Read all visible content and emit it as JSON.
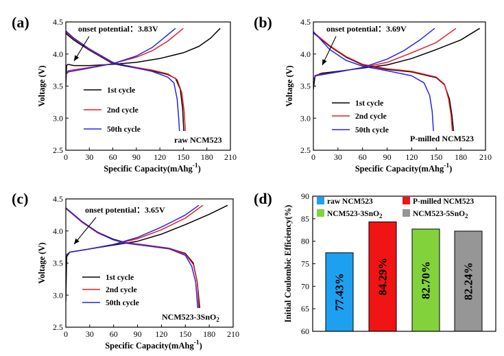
{
  "figure": {
    "voltage_axis_label": "Voltage (V)",
    "capacity_axis_label": "Specific Capacity(mAhg",
    "capacity_axis_exponent": "-1",
    "capacity_axis_close": ")",
    "ce_axis_label": "Initial Coulombic Efficiency(%)",
    "colors": {
      "black": "#000000",
      "red": "#e81c24",
      "blue": "#2323e6"
    }
  },
  "chart_data": [
    {
      "id": "a",
      "type": "line",
      "panel_label": "(a)",
      "xlabel": "Specific Capacity(mAhg-1)",
      "ylabel": "Voltage (V)",
      "xlim": [
        0,
        210
      ],
      "ylim": [
        2.5,
        4.5
      ],
      "xticks": [
        "0",
        "30",
        "60",
        "90",
        "120",
        "150",
        "180",
        "210"
      ],
      "yticks": [
        "2.5",
        "3.0",
        "3.5",
        "4.0",
        "4.5"
      ],
      "annotation": "onset potential：3.83V",
      "sample_label": "raw NCM523",
      "legend_position": "lower-left",
      "series": [
        {
          "name": "1st   cycle",
          "color": "#000000",
          "charge": [
            [
              0,
              3.5
            ],
            [
              1,
              3.82
            ],
            [
              3,
              3.84
            ],
            [
              10,
              3.82
            ],
            [
              30,
              3.82
            ],
            [
              60,
              3.84
            ],
            [
              90,
              3.87
            ],
            [
              120,
              3.93
            ],
            [
              150,
              4.02
            ],
            [
              170,
              4.12
            ],
            [
              185,
              4.25
            ],
            [
              197,
              4.4
            ]
          ],
          "discharge": [
            [
              0,
              4.32
            ],
            [
              10,
              4.22
            ],
            [
              30,
              4.06
            ],
            [
              60,
              3.85
            ],
            [
              90,
              3.78
            ],
            [
              110,
              3.74
            ],
            [
              130,
              3.68
            ],
            [
              140,
              3.62
            ],
            [
              146,
              3.45
            ],
            [
              149,
              3.15
            ],
            [
              150.5,
              2.8
            ]
          ]
        },
        {
          "name": "2nd   cycle",
          "color": "#e81c24",
          "charge": [
            [
              0,
              3.68
            ],
            [
              3,
              3.74
            ],
            [
              30,
              3.79
            ],
            [
              60,
              3.85
            ],
            [
              90,
              3.95
            ],
            [
              110,
              4.05
            ],
            [
              130,
              4.2
            ],
            [
              150,
              4.4
            ]
          ],
          "discharge": [
            [
              0,
              4.34
            ],
            [
              10,
              4.24
            ],
            [
              30,
              4.07
            ],
            [
              60,
              3.86
            ],
            [
              90,
              3.79
            ],
            [
              110,
              3.75
            ],
            [
              130,
              3.69
            ],
            [
              142,
              3.6
            ],
            [
              148,
              3.4
            ],
            [
              151,
              3.1
            ],
            [
              152.5,
              2.8
            ]
          ]
        },
        {
          "name": "50th cycle",
          "color": "#2323e6",
          "charge": [
            [
              0,
              3.68
            ],
            [
              3,
              3.72
            ],
            [
              30,
              3.78
            ],
            [
              60,
              3.85
            ],
            [
              90,
              3.97
            ],
            [
              110,
              4.1
            ],
            [
              125,
              4.25
            ],
            [
              140,
              4.4
            ]
          ],
          "discharge": [
            [
              0,
              4.36
            ],
            [
              10,
              4.25
            ],
            [
              30,
              4.08
            ],
            [
              60,
              3.87
            ],
            [
              90,
              3.78
            ],
            [
              110,
              3.73
            ],
            [
              130,
              3.64
            ],
            [
              138,
              3.55
            ],
            [
              142,
              3.3
            ],
            [
              144,
              3.0
            ],
            [
              145,
              2.8
            ]
          ]
        }
      ]
    },
    {
      "id": "b",
      "type": "line",
      "panel_label": "(b)",
      "xlabel": "Specific Capacity(mAhg-1)",
      "ylabel": "Voltage (V)",
      "xlim": [
        0,
        210
      ],
      "ylim": [
        2.5,
        4.5
      ],
      "xticks": [
        "0",
        "30",
        "60",
        "90",
        "120",
        "150",
        "180",
        "210"
      ],
      "yticks": [
        "2.5",
        "3.0",
        "3.5",
        "4.0",
        "4.5"
      ],
      "annotation": "onset potential：3.69V",
      "sample_label": "P-milled NCM523",
      "legend_position": "lower-left",
      "series": [
        {
          "name": "1st   cycle",
          "color": "#000000",
          "charge": [
            [
              0,
              3.45
            ],
            [
              2,
              3.66
            ],
            [
              10,
              3.7
            ],
            [
              30,
              3.73
            ],
            [
              60,
              3.78
            ],
            [
              90,
              3.83
            ],
            [
              120,
              3.93
            ],
            [
              150,
              4.07
            ],
            [
              180,
              4.22
            ],
            [
              203,
              4.4
            ]
          ],
          "discharge": [
            [
              0,
              4.33
            ],
            [
              20,
              4.12
            ],
            [
              40,
              3.95
            ],
            [
              60,
              3.83
            ],
            [
              90,
              3.76
            ],
            [
              120,
              3.72
            ],
            [
              150,
              3.63
            ],
            [
              160,
              3.52
            ],
            [
              166,
              3.3
            ],
            [
              169,
              3.05
            ],
            [
              171,
              2.8
            ]
          ]
        },
        {
          "name": "2nd   cycle",
          "color": "#e81c24",
          "charge": [
            [
              0,
              3.6
            ],
            [
              3,
              3.67
            ],
            [
              30,
              3.72
            ],
            [
              60,
              3.79
            ],
            [
              90,
              3.87
            ],
            [
              120,
              4.02
            ],
            [
              150,
              4.18
            ],
            [
              174,
              4.4
            ]
          ],
          "discharge": [
            [
              0,
              4.34
            ],
            [
              20,
              4.13
            ],
            [
              40,
              3.96
            ],
            [
              60,
              3.84
            ],
            [
              90,
              3.77
            ],
            [
              120,
              3.73
            ],
            [
              150,
              3.64
            ],
            [
              160,
              3.53
            ],
            [
              165,
              3.3
            ],
            [
              168,
              3.05
            ],
            [
              169.5,
              2.8
            ]
          ]
        },
        {
          "name": "50th cycle",
          "color": "#2323e6",
          "charge": [
            [
              0,
              3.6
            ],
            [
              3,
              3.66
            ],
            [
              30,
              3.72
            ],
            [
              60,
              3.79
            ],
            [
              90,
              3.92
            ],
            [
              110,
              4.05
            ],
            [
              130,
              4.22
            ],
            [
              148,
              4.4
            ]
          ],
          "discharge": [
            [
              0,
              4.35
            ],
            [
              20,
              4.07
            ],
            [
              40,
              3.9
            ],
            [
              60,
              3.81
            ],
            [
              90,
              3.74
            ],
            [
              120,
              3.66
            ],
            [
              135,
              3.55
            ],
            [
              142,
              3.35
            ],
            [
              145,
              3.1
            ],
            [
              146.5,
              2.8
            ]
          ]
        }
      ]
    },
    {
      "id": "c",
      "type": "line",
      "panel_label": "(c)",
      "xlabel": "Specific Capacity(mAhg-1)",
      "ylabel": "Voltage (V)",
      "xlim": [
        0,
        210
      ],
      "ylim": [
        2.5,
        4.5
      ],
      "xticks": [
        "0",
        "30",
        "60",
        "90",
        "120",
        "150",
        "180",
        "210"
      ],
      "yticks": [
        "2.5",
        "3.0",
        "3.5",
        "4.0",
        "4.5"
      ],
      "annotation": "onset potential：3.65V",
      "sample_label": "NCM523-3SnO",
      "sample_label_sub": "2",
      "legend_position": "lower-left",
      "series": [
        {
          "name": "1st   cycle",
          "color": "#000000",
          "charge": [
            [
              0,
              2.9
            ],
            [
              1,
              3.6
            ],
            [
              5,
              3.67
            ],
            [
              30,
              3.72
            ],
            [
              60,
              3.78
            ],
            [
              90,
              3.84
            ],
            [
              120,
              3.95
            ],
            [
              150,
              4.1
            ],
            [
              180,
              4.26
            ],
            [
              203,
              4.4
            ]
          ],
          "discharge": [
            [
              0,
              4.36
            ],
            [
              20,
              4.15
            ],
            [
              40,
              3.98
            ],
            [
              60,
              3.87
            ],
            [
              75,
              3.82
            ],
            [
              100,
              3.78
            ],
            [
              130,
              3.73
            ],
            [
              150,
              3.65
            ],
            [
              160,
              3.5
            ],
            [
              165,
              3.2
            ],
            [
              168,
              2.8
            ]
          ]
        },
        {
          "name": "2nd   cycle",
          "color": "#e81c24",
          "charge": [
            [
              0,
              3.62
            ],
            [
              5,
              3.67
            ],
            [
              30,
              3.72
            ],
            [
              60,
              3.79
            ],
            [
              90,
              3.88
            ],
            [
              120,
              4.02
            ],
            [
              150,
              4.2
            ],
            [
              172,
              4.4
            ]
          ],
          "discharge": [
            [
              0,
              4.35
            ],
            [
              20,
              4.14
            ],
            [
              40,
              3.97
            ],
            [
              60,
              3.86
            ],
            [
              75,
              3.82
            ],
            [
              100,
              3.78
            ],
            [
              130,
              3.73
            ],
            [
              150,
              3.64
            ],
            [
              160,
              3.48
            ],
            [
              165,
              3.2
            ],
            [
              167,
              2.8
            ]
          ]
        },
        {
          "name": "50th cycle",
          "color": "#2323e6",
          "charge": [
            [
              0,
              3.62
            ],
            [
              5,
              3.67
            ],
            [
              30,
              3.72
            ],
            [
              60,
              3.79
            ],
            [
              90,
              3.9
            ],
            [
              120,
              4.06
            ],
            [
              150,
              4.25
            ],
            [
              167,
              4.4
            ]
          ],
          "discharge": [
            [
              0,
              4.36
            ],
            [
              20,
              4.15
            ],
            [
              40,
              3.98
            ],
            [
              60,
              3.86
            ],
            [
              75,
              3.81
            ],
            [
              100,
              3.77
            ],
            [
              130,
              3.72
            ],
            [
              150,
              3.62
            ],
            [
              158,
              3.45
            ],
            [
              163,
              3.2
            ],
            [
              165.5,
              2.8
            ]
          ]
        }
      ]
    },
    {
      "id": "d",
      "type": "bar",
      "panel_label": "(d)",
      "ylabel": "Initial Coulombic Efficiency(%)",
      "ylim": [
        60,
        90
      ],
      "yticks": [
        "60",
        "65",
        "70",
        "75",
        "80",
        "85",
        "90"
      ],
      "legend_position": "top",
      "categories": [
        "raw NCM523",
        "P-milled NCM523",
        "NCM523-3SnO2",
        "NCM523-5SnO2"
      ],
      "values": [
        77.43,
        84.29,
        82.7,
        82.24
      ],
      "value_labels": [
        "77.43%",
        "84.29%",
        "82.70%",
        "82.24%"
      ],
      "colors": [
        "#1ea0f0",
        "#f01414",
        "#82d23c",
        "#969696"
      ],
      "legend": [
        {
          "text": "raw NCM523",
          "sub": ""
        },
        {
          "text": "P-milled NCM523",
          "sub": ""
        },
        {
          "text": "NCM523-3SnO",
          "sub": "2"
        },
        {
          "text": "NCM523-5SnO",
          "sub": "2"
        }
      ]
    }
  ]
}
